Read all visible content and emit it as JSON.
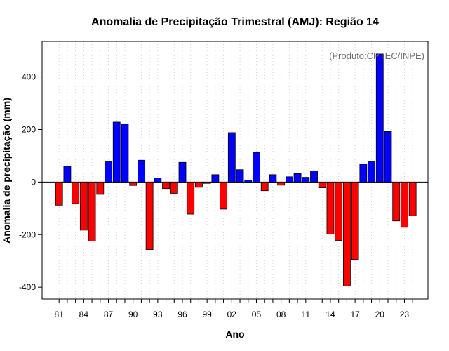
{
  "chart_data": {
    "type": "bar",
    "title": "Anomalia de Precipitação Trimestral (AMJ): Região 14",
    "xlabel": "Ano",
    "ylabel": "Anomalia de precipitação (mm)",
    "credit": "(Produto:CPTEC/INPE)",
    "ylim": [
      -445,
      535
    ],
    "yticks": [
      -400,
      -200,
      0,
      200,
      400
    ],
    "xtick_labels": [
      {
        "index": 0,
        "label": "81"
      },
      {
        "index": 3,
        "label": "84"
      },
      {
        "index": 6,
        "label": "87"
      },
      {
        "index": 9,
        "label": "90"
      },
      {
        "index": 12,
        "label": "93"
      },
      {
        "index": 15,
        "label": "96"
      },
      {
        "index": 18,
        "label": "99"
      },
      {
        "index": 21,
        "label": "02"
      },
      {
        "index": 24,
        "label": "05"
      },
      {
        "index": 27,
        "label": "08"
      },
      {
        "index": 30,
        "label": "11"
      },
      {
        "index": 33,
        "label": "14"
      },
      {
        "index": 36,
        "label": "17"
      },
      {
        "index": 39,
        "label": "20"
      },
      {
        "index": 42,
        "label": "23"
      }
    ],
    "categories": [
      "1981",
      "1982",
      "1983",
      "1984",
      "1985",
      "1986",
      "1987",
      "1988",
      "1989",
      "1990",
      "1991",
      "1992",
      "1993",
      "1994",
      "1995",
      "1996",
      "1997",
      "1998",
      "1999",
      "2000",
      "2001",
      "2002",
      "2003",
      "2004",
      "2005",
      "2006",
      "2007",
      "2008",
      "2009",
      "2010",
      "2011",
      "2012",
      "2013",
      "2014",
      "2015",
      "2016",
      "2017",
      "2018",
      "2019",
      "2020",
      "2021",
      "2022",
      "2023",
      "2024"
    ],
    "values": [
      -88,
      60,
      -82,
      -183,
      -225,
      -47,
      77,
      228,
      220,
      -13,
      83,
      -257,
      15,
      -25,
      -43,
      75,
      -122,
      -20,
      -5,
      28,
      -103,
      188,
      47,
      8,
      113,
      -33,
      28,
      -12,
      20,
      32,
      18,
      42,
      -22,
      -198,
      -222,
      -395,
      -295,
      68,
      77,
      487,
      192,
      -148,
      -172,
      -128
    ],
    "positive_color": "#0000ff",
    "negative_color": "#ff0000",
    "grid": "vertical dotted"
  }
}
